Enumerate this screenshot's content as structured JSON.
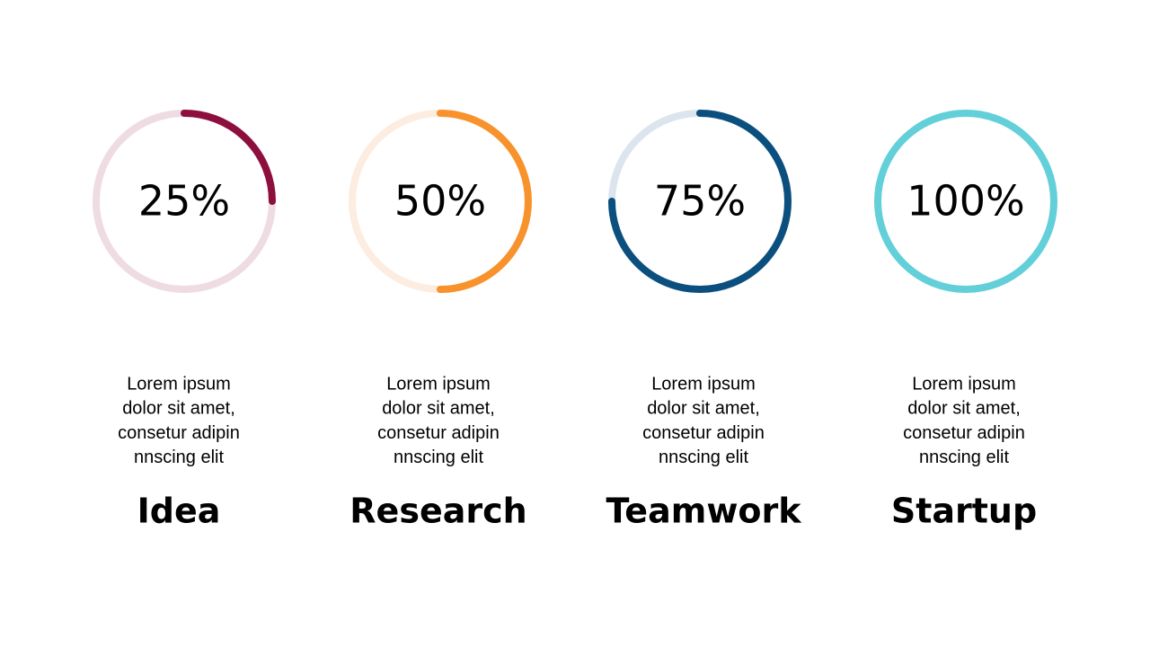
{
  "chart_data": [
    {
      "type": "progress-ring",
      "title": "Idea",
      "description": [
        "Lorem ipsum",
        "dolor sit amet,",
        "consetur adipin",
        "nnscing elit"
      ],
      "values": [
        25
      ],
      "value_labels": [
        "25%"
      ],
      "ylim": [
        0,
        100
      ],
      "color": "#8c0f3d",
      "track_color": "#eedce2"
    },
    {
      "type": "progress-ring",
      "title": "Research",
      "description": [
        "Lorem ipsum",
        "dolor sit amet,",
        "consetur adipin",
        "nnscing elit"
      ],
      "values": [
        50
      ],
      "value_labels": [
        "50%"
      ],
      "ylim": [
        0,
        100
      ],
      "color": "#f7922c",
      "track_color": "#fdece0"
    },
    {
      "type": "progress-ring",
      "title": "Teamwork",
      "description": [
        "Lorem ipsum",
        "dolor sit amet,",
        "consetur adipin",
        "nnscing elit"
      ],
      "values": [
        75
      ],
      "value_labels": [
        "75%"
      ],
      "ylim": [
        0,
        100
      ],
      "color": "#0b4f7f",
      "track_color": "#dce5ee"
    },
    {
      "type": "progress-ring",
      "title": "Startup",
      "description": [
        "Lorem ipsum",
        "dolor sit amet,",
        "consetur adipin",
        "nnscing elit"
      ],
      "values": [
        100
      ],
      "value_labels": [
        "100%"
      ],
      "ylim": [
        0,
        100
      ],
      "color": "#62cfd9",
      "track_color": "#e0f5f7"
    }
  ]
}
